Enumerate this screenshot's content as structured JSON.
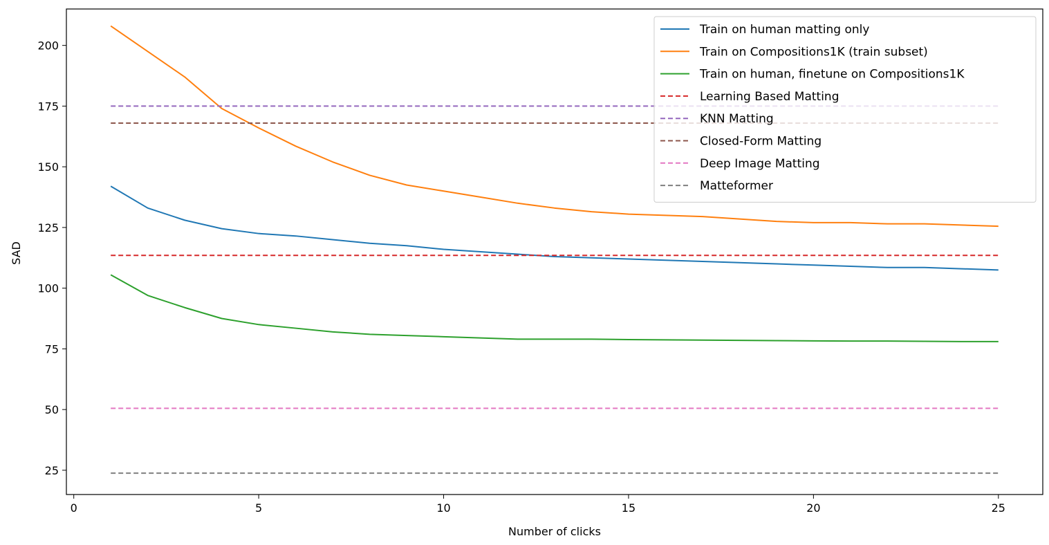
{
  "chart_data": {
    "type": "line",
    "title": "",
    "xlabel": "Number of clicks",
    "ylabel": "SAD",
    "xlim": [
      -0.2,
      26.2
    ],
    "ylim": [
      15,
      215
    ],
    "xticks": [
      0,
      5,
      10,
      15,
      20,
      25
    ],
    "yticks": [
      25,
      50,
      75,
      100,
      125,
      150,
      175,
      200
    ],
    "grid": false,
    "legend_position": "top-right",
    "x": [
      1,
      2,
      3,
      4,
      5,
      6,
      7,
      8,
      9,
      10,
      11,
      12,
      13,
      14,
      15,
      16,
      17,
      18,
      19,
      20,
      21,
      22,
      23,
      24,
      25
    ],
    "series": [
      {
        "name": "Train on human matting only",
        "color": "#1f77b4",
        "style": "solid",
        "values": [
          142,
          133,
          128,
          124.5,
          122.5,
          121.5,
          120,
          118.5,
          117.5,
          116,
          115,
          114,
          113,
          112.5,
          112,
          111.5,
          111,
          110.5,
          110,
          109.5,
          109,
          108.5,
          108.5,
          108,
          107.5
        ]
      },
      {
        "name": "Train on Compositions1K (train subset)",
        "color": "#ff7f0e",
        "style": "solid",
        "values": [
          208,
          197.5,
          187,
          174,
          166,
          158.5,
          152,
          146.5,
          142.5,
          140,
          137.5,
          135,
          133,
          131.5,
          130.5,
          130,
          129.5,
          128.5,
          127.5,
          127,
          127,
          126.5,
          126.5,
          126,
          125.5
        ]
      },
      {
        "name": "Train on human, finetune on Compositions1K",
        "color": "#2ca02c",
        "style": "solid",
        "values": [
          105.5,
          97,
          92,
          87.5,
          85,
          83.5,
          82,
          81,
          80.5,
          80,
          79.5,
          79,
          79,
          79,
          78.8,
          78.7,
          78.6,
          78.5,
          78.4,
          78.3,
          78.2,
          78.2,
          78.1,
          78,
          78
        ]
      },
      {
        "name": "Learning Based Matting",
        "color": "#d62728",
        "style": "dashed",
        "values": [
          113.5,
          113.5,
          113.5,
          113.5,
          113.5,
          113.5,
          113.5,
          113.5,
          113.5,
          113.5,
          113.5,
          113.5,
          113.5,
          113.5,
          113.5,
          113.5,
          113.5,
          113.5,
          113.5,
          113.5,
          113.5,
          113.5,
          113.5,
          113.5,
          113.5
        ]
      },
      {
        "name": "KNN Matting",
        "color": "#9467bd",
        "style": "dashed",
        "values": [
          175,
          175,
          175,
          175,
          175,
          175,
          175,
          175,
          175,
          175,
          175,
          175,
          175,
          175,
          175,
          175,
          175,
          175,
          175,
          175,
          175,
          175,
          175,
          175,
          175
        ]
      },
      {
        "name": "Closed-Form Matting",
        "color": "#8c564b",
        "style": "dashed",
        "values": [
          168,
          168,
          168,
          168,
          168,
          168,
          168,
          168,
          168,
          168,
          168,
          168,
          168,
          168,
          168,
          168,
          168,
          168,
          168,
          168,
          168,
          168,
          168,
          168,
          168
        ]
      },
      {
        "name": "Deep Image Matting",
        "color": "#e377c2",
        "style": "dashed",
        "values": [
          50.5,
          50.5,
          50.5,
          50.5,
          50.5,
          50.5,
          50.5,
          50.5,
          50.5,
          50.5,
          50.5,
          50.5,
          50.5,
          50.5,
          50.5,
          50.5,
          50.5,
          50.5,
          50.5,
          50.5,
          50.5,
          50.5,
          50.5,
          50.5,
          50.5
        ]
      },
      {
        "name": "Matteformer",
        "color": "#7f7f7f",
        "style": "dashed",
        "values": [
          23.8,
          23.8,
          23.8,
          23.8,
          23.8,
          23.8,
          23.8,
          23.8,
          23.8,
          23.8,
          23.8,
          23.8,
          23.8,
          23.8,
          23.8,
          23.8,
          23.8,
          23.8,
          23.8,
          23.8,
          23.8,
          23.8,
          23.8,
          23.8,
          23.8
        ]
      }
    ]
  }
}
